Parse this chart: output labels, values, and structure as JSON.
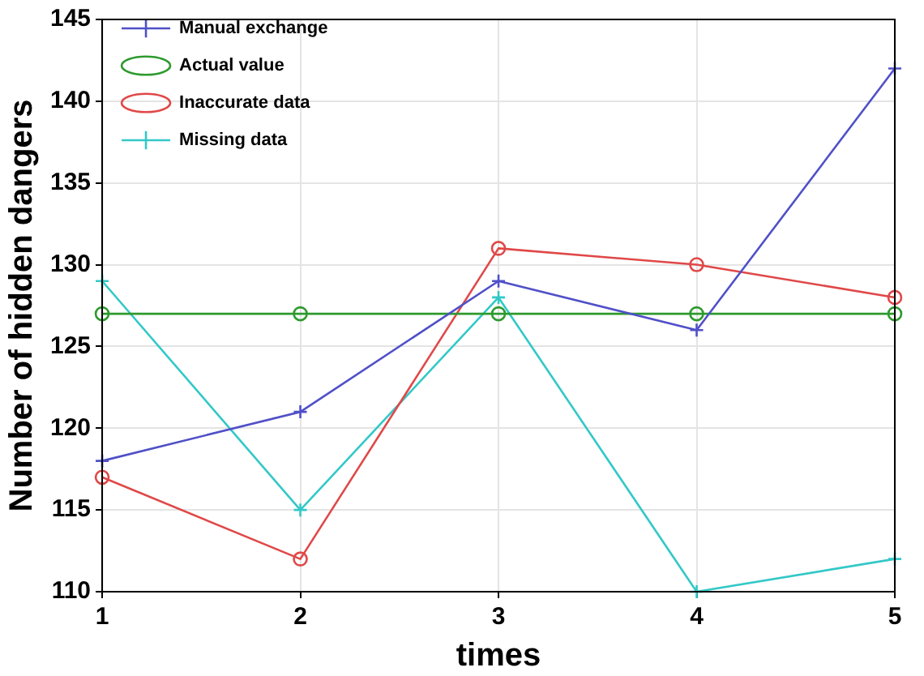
{
  "chart_data": {
    "type": "line",
    "xlabel": "times",
    "ylabel": "Number of hidden dangers",
    "x": [
      1,
      2,
      3,
      4,
      5
    ],
    "xlim": [
      1,
      5
    ],
    "xticks": [
      1,
      2,
      3,
      4,
      5
    ],
    "ylim": [
      110,
      145
    ],
    "yticks": [
      110,
      115,
      120,
      125,
      130,
      135,
      140,
      145
    ],
    "grid": true,
    "legend": "top left",
    "line_style": "solid",
    "series": [
      {
        "name": "Manual exchange",
        "color": "#5050c8",
        "marker": "cross",
        "values": [
          118,
          121,
          129,
          126,
          142
        ]
      },
      {
        "name": "Actual value",
        "color": "#2e9a2e",
        "marker": "circle",
        "values": [
          127,
          127,
          127,
          127,
          127
        ]
      },
      {
        "name": "Inaccurate data",
        "color": "#e04848",
        "marker": "circle",
        "values": [
          117,
          112,
          131,
          130,
          128
        ]
      },
      {
        "name": "Missing data",
        "color": "#33c8c8",
        "marker": "cross",
        "values": [
          129,
          115,
          128,
          110,
          112
        ]
      }
    ]
  }
}
